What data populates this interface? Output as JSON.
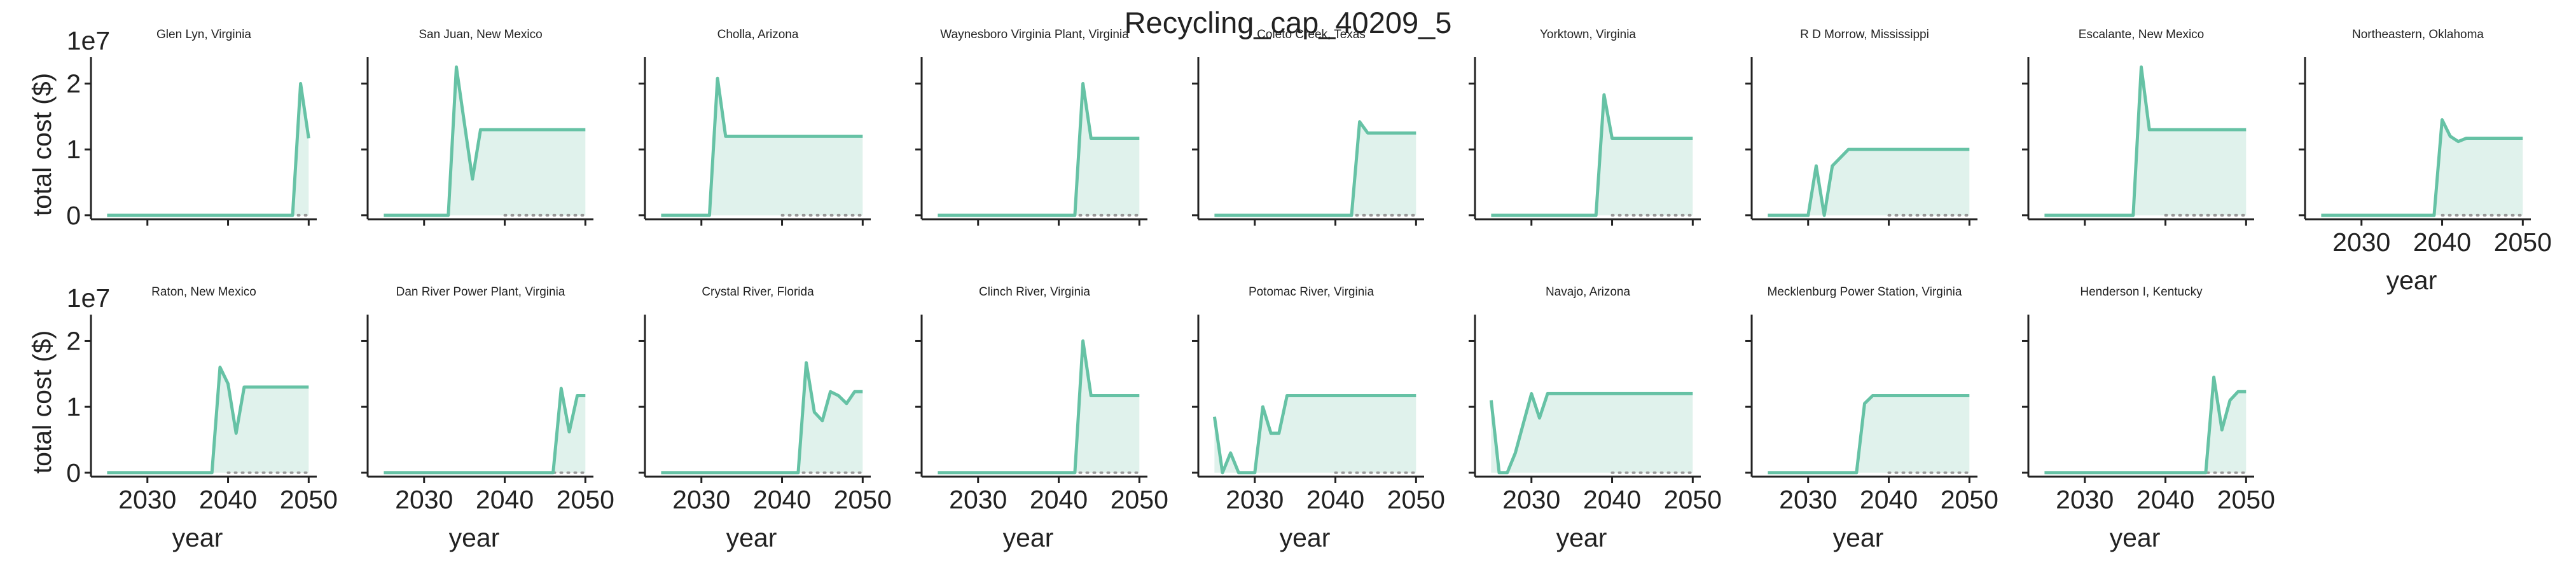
{
  "figure": {
    "title": "Recycling_cap_40209_5"
  },
  "colors": {
    "series": "#66c2a5",
    "fill": "#e0f2ec",
    "zero_line": "#999999",
    "axis": "#222222"
  },
  "chart_data": [
    {
      "type": "area",
      "title": "Glen Lyn, Virginia",
      "x": [
        2025,
        2030,
        2035,
        2040,
        2045,
        2047,
        2048,
        2049,
        2050
      ],
      "y": [
        0,
        0,
        0,
        0,
        0,
        0,
        0,
        20,
        11.7
      ],
      "ylabel": "total cost ($)",
      "ylabel_multiplier": "1e7",
      "xlabel": "",
      "xlim": [
        2023,
        2051
      ],
      "ylim": [
        -0.6,
        24
      ],
      "xticks": [
        2030,
        2040,
        2050
      ],
      "yticks": [
        0,
        1,
        2
      ],
      "show_xticklabels": false,
      "show_yticklabels": true
    },
    {
      "type": "area",
      "title": "San Juan, New Mexico",
      "x": [
        2025,
        2030,
        2033,
        2034,
        2035,
        2036,
        2037,
        2040,
        2045,
        2050
      ],
      "y": [
        0,
        0,
        0,
        22.5,
        14,
        5.5,
        13,
        13,
        13,
        13
      ],
      "ylabel": "",
      "xlabel": "",
      "xlim": [
        2023,
        2051
      ],
      "ylim": [
        -0.6,
        24
      ],
      "xticks": [
        2030,
        2040,
        2050
      ],
      "yticks": [
        0,
        1,
        2
      ],
      "show_xticklabels": false,
      "show_yticklabels": false
    },
    {
      "type": "area",
      "title": "Cholla, Arizona",
      "x": [
        2025,
        2030,
        2031,
        2032,
        2033,
        2035,
        2040,
        2045,
        2050
      ],
      "y": [
        0,
        0,
        0,
        20.8,
        12,
        12,
        12,
        12,
        12
      ],
      "ylabel": "",
      "xlabel": "",
      "xlim": [
        2023,
        2051
      ],
      "ylim": [
        -0.6,
        24
      ],
      "xticks": [
        2030,
        2040,
        2050
      ],
      "yticks": [
        0,
        1,
        2
      ],
      "show_xticklabels": false,
      "show_yticklabels": false
    },
    {
      "type": "area",
      "title": "Waynesboro Virginia Plant, Virginia",
      "x": [
        2025,
        2030,
        2035,
        2040,
        2042,
        2043,
        2044,
        2045,
        2050
      ],
      "y": [
        0,
        0,
        0,
        0,
        0,
        20,
        11.7,
        11.7,
        11.7
      ],
      "ylabel": "",
      "xlabel": "",
      "xlim": [
        2023,
        2051
      ],
      "ylim": [
        -0.6,
        24
      ],
      "xticks": [
        2030,
        2040,
        2050
      ],
      "yticks": [
        0,
        1,
        2
      ],
      "show_xticklabels": false,
      "show_yticklabels": false
    },
    {
      "type": "area",
      "title": "Coleto Creek, Texas",
      "x": [
        2025,
        2030,
        2035,
        2040,
        2042,
        2043,
        2044,
        2045,
        2050
      ],
      "y": [
        0,
        0,
        0,
        0,
        0,
        14.2,
        12.5,
        12.5,
        12.5
      ],
      "ylabel": "",
      "xlabel": "",
      "xlim": [
        2023,
        2051
      ],
      "ylim": [
        -0.6,
        24
      ],
      "xticks": [
        2030,
        2040,
        2050
      ],
      "yticks": [
        0,
        1,
        2
      ],
      "show_xticklabels": false,
      "show_yticklabels": false
    },
    {
      "type": "area",
      "title": "Yorktown, Virginia",
      "x": [
        2025,
        2030,
        2035,
        2038,
        2039,
        2040,
        2045,
        2050
      ],
      "y": [
        0,
        0,
        0,
        0,
        18.3,
        11.7,
        11.7,
        11.7
      ],
      "ylabel": "",
      "xlabel": "",
      "xlim": [
        2023,
        2051
      ],
      "ylim": [
        -0.6,
        24
      ],
      "xticks": [
        2030,
        2040,
        2050
      ],
      "yticks": [
        0,
        1,
        2
      ],
      "show_xticklabels": false,
      "show_yticklabels": false
    },
    {
      "type": "area",
      "title": "R D Morrow, Mississippi",
      "x": [
        2025,
        2029,
        2030,
        2031,
        2032,
        2033,
        2035,
        2040,
        2045,
        2050
      ],
      "y": [
        0,
        0,
        0,
        7.5,
        0,
        7.5,
        10,
        10,
        10,
        10
      ],
      "ylabel": "",
      "xlabel": "",
      "xlim": [
        2023,
        2051
      ],
      "ylim": [
        -0.6,
        24
      ],
      "xticks": [
        2030,
        2040,
        2050
      ],
      "yticks": [
        0,
        1,
        2
      ],
      "show_xticklabels": false,
      "show_yticklabels": false
    },
    {
      "type": "area",
      "title": "Escalante, New Mexico",
      "x": [
        2025,
        2030,
        2035,
        2036,
        2037,
        2038,
        2040,
        2045,
        2050
      ],
      "y": [
        0,
        0,
        0,
        0,
        22.5,
        13,
        13,
        13,
        13
      ],
      "ylabel": "",
      "xlabel": "",
      "xlim": [
        2023,
        2051
      ],
      "ylim": [
        -0.6,
        24
      ],
      "xticks": [
        2030,
        2040,
        2050
      ],
      "yticks": [
        0,
        1,
        2
      ],
      "show_xticklabels": false,
      "show_yticklabels": false
    },
    {
      "type": "area",
      "title": "Northeastern, Oklahoma",
      "x": [
        2025,
        2030,
        2035,
        2039,
        2040,
        2041,
        2042,
        2043,
        2045,
        2050
      ],
      "y": [
        0,
        0,
        0,
        0,
        14.5,
        12,
        11.2,
        11.7,
        11.7,
        11.7
      ],
      "ylabel": "",
      "xlabel": "year",
      "xlim": [
        2023,
        2051
      ],
      "ylim": [
        -0.6,
        24
      ],
      "xticks": [
        2030,
        2040,
        2050
      ],
      "yticks": [
        0,
        1,
        2
      ],
      "show_xticklabels": true,
      "show_yticklabels": false
    },
    {
      "type": "area",
      "title": "Raton, New Mexico",
      "x": [
        2025,
        2030,
        2035,
        2038,
        2039,
        2040,
        2041,
        2042,
        2045,
        2050
      ],
      "y": [
        0,
        0,
        0,
        0,
        16,
        13.5,
        6,
        13,
        13,
        13
      ],
      "ylabel": "total cost ($)",
      "ylabel_multiplier": "1e7",
      "xlabel": "year",
      "xlim": [
        2023,
        2051
      ],
      "ylim": [
        -0.6,
        24
      ],
      "xticks": [
        2030,
        2040,
        2050
      ],
      "yticks": [
        0,
        1,
        2
      ],
      "show_xticklabels": true,
      "show_yticklabels": true
    },
    {
      "type": "area",
      "title": "Dan River Power Plant, Virginia",
      "x": [
        2025,
        2030,
        2035,
        2040,
        2045,
        2046,
        2047,
        2048,
        2049,
        2050
      ],
      "y": [
        0,
        0,
        0,
        0,
        0,
        0,
        12.8,
        6.2,
        11.7,
        11.7
      ],
      "ylabel": "",
      "xlabel": "year",
      "xlim": [
        2023,
        2051
      ],
      "ylim": [
        -0.6,
        24
      ],
      "xticks": [
        2030,
        2040,
        2050
      ],
      "yticks": [
        0,
        1,
        2
      ],
      "show_xticklabels": true,
      "show_yticklabels": false
    },
    {
      "type": "area",
      "title": "Crystal River, Florida",
      "x": [
        2025,
        2030,
        2035,
        2040,
        2042,
        2043,
        2044,
        2045,
        2046,
        2047,
        2048,
        2049,
        2050
      ],
      "y": [
        0,
        0,
        0,
        0,
        0,
        16.7,
        9.2,
        7.9,
        12.3,
        11.7,
        10.5,
        12.3,
        12.3
      ],
      "ylabel": "",
      "xlabel": "year",
      "xlim": [
        2023,
        2051
      ],
      "ylim": [
        -0.6,
        24
      ],
      "xticks": [
        2030,
        2040,
        2050
      ],
      "yticks": [
        0,
        1,
        2
      ],
      "show_xticklabels": true,
      "show_yticklabels": false
    },
    {
      "type": "area",
      "title": "Clinch River, Virginia",
      "x": [
        2025,
        2030,
        2035,
        2040,
        2042,
        2043,
        2044,
        2045,
        2050
      ],
      "y": [
        0,
        0,
        0,
        0,
        0,
        20,
        11.7,
        11.7,
        11.7
      ],
      "ylabel": "",
      "xlabel": "year",
      "xlim": [
        2023,
        2051
      ],
      "ylim": [
        -0.6,
        24
      ],
      "xticks": [
        2030,
        2040,
        2050
      ],
      "yticks": [
        0,
        1,
        2
      ],
      "show_xticklabels": true,
      "show_yticklabels": false
    },
    {
      "type": "area",
      "title": "Potomac River, Virginia",
      "x": [
        2025,
        2026,
        2027,
        2028,
        2029,
        2030,
        2031,
        2032,
        2033,
        2034,
        2035,
        2040,
        2045,
        2050
      ],
      "y": [
        8.5,
        0,
        3,
        0,
        0,
        0,
        10,
        6,
        6,
        11.7,
        11.7,
        11.7,
        11.7,
        11.7
      ],
      "ylabel": "",
      "xlabel": "year",
      "xlim": [
        2023,
        2051
      ],
      "ylim": [
        -0.6,
        24
      ],
      "xticks": [
        2030,
        2040,
        2050
      ],
      "yticks": [
        0,
        1,
        2
      ],
      "show_xticklabels": true,
      "show_yticklabels": false
    },
    {
      "type": "area",
      "title": "Navajo, Arizona",
      "x": [
        2025,
        2026,
        2027,
        2028,
        2029,
        2030,
        2031,
        2032,
        2035,
        2040,
        2045,
        2050
      ],
      "y": [
        11,
        0,
        0,
        3,
        7.5,
        12,
        8.3,
        12,
        12,
        12,
        12,
        12
      ],
      "ylabel": "",
      "xlabel": "year",
      "xlim": [
        2023,
        2051
      ],
      "ylim": [
        -0.6,
        24
      ],
      "xticks": [
        2030,
        2040,
        2050
      ],
      "yticks": [
        0,
        1,
        2
      ],
      "show_xticklabels": true,
      "show_yticklabels": false
    },
    {
      "type": "area",
      "title": "Mecklenburg Power Station, Virginia",
      "x": [
        2025,
        2030,
        2035,
        2036,
        2037,
        2038,
        2040,
        2045,
        2050
      ],
      "y": [
        0,
        0,
        0,
        0,
        10.5,
        11.7,
        11.7,
        11.7,
        11.7
      ],
      "ylabel": "",
      "xlabel": "year",
      "xlim": [
        2023,
        2051
      ],
      "ylim": [
        -0.6,
        24
      ],
      "xticks": [
        2030,
        2040,
        2050
      ],
      "yticks": [
        0,
        1,
        2
      ],
      "show_xticklabels": true,
      "show_yticklabels": false
    },
    {
      "type": "area",
      "title": "Henderson I, Kentucky",
      "x": [
        2025,
        2030,
        2035,
        2040,
        2045,
        2046,
        2047,
        2048,
        2049,
        2050
      ],
      "y": [
        0,
        0,
        0,
        0,
        0,
        14.5,
        6.5,
        11,
        12.3,
        12.3
      ],
      "ylabel": "",
      "xlabel": "year",
      "xlim": [
        2023,
        2051
      ],
      "ylim": [
        -0.6,
        24
      ],
      "xticks": [
        2030,
        2040,
        2050
      ],
      "yticks": [
        0,
        1,
        2
      ],
      "show_xticklabels": true,
      "show_yticklabels": false
    }
  ]
}
